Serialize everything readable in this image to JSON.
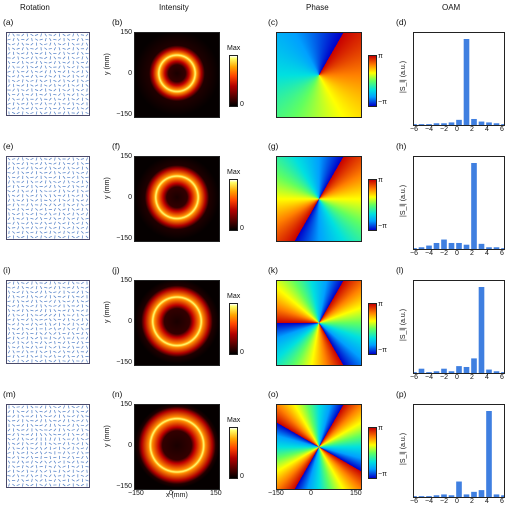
{
  "columns": {
    "rotation": "Rotation",
    "intensity": "Intensity",
    "phase": "Phase",
    "oam": "OAM"
  },
  "panel_letters": [
    [
      "(a)",
      "(b)",
      "(c)",
      "(d)"
    ],
    [
      "(e)",
      "(f)",
      "(g)",
      "(h)"
    ],
    [
      "(i)",
      "(j)",
      "(k)",
      "(l)"
    ],
    [
      "(m)",
      "(n)",
      "(o)",
      "(p)"
    ]
  ],
  "colorbar_intensity": {
    "max": "Max",
    "min": "0"
  },
  "colorbar_phase": {
    "max": "π",
    "min": "−π"
  },
  "axes": {
    "ylabel": "y (mm)",
    "xlabel": "x (mm)",
    "yticks": [
      "150",
      "0",
      "−150"
    ],
    "xticks": [
      "−150",
      "0",
      "150"
    ],
    "oam_ylabel": "|S_l| (a.u.)",
    "oam_xticks": [
      "−6",
      "−4",
      "−2",
      "0",
      "2",
      "4",
      "6"
    ]
  },
  "chart_data": [
    {
      "type": "bar",
      "panel": "(d)",
      "title": "OAM",
      "xlabel": "",
      "ylabel": "|S_l| (a.u.)",
      "xlim": [
        -6,
        6
      ],
      "categories": [
        -6,
        -5,
        -4,
        -3,
        -2,
        -1,
        0,
        1,
        2,
        3,
        4,
        5,
        6
      ],
      "values": [
        0.01,
        0.01,
        0.01,
        0.02,
        0.02,
        0.03,
        0.06,
        1.0,
        0.07,
        0.04,
        0.03,
        0.02,
        0.01
      ]
    },
    {
      "type": "bar",
      "panel": "(h)",
      "xlabel": "",
      "ylabel": "|S_l| (a.u.)",
      "xlim": [
        -6,
        6
      ],
      "categories": [
        -6,
        -5,
        -4,
        -3,
        -2,
        -1,
        0,
        1,
        2,
        3,
        4,
        5,
        6
      ],
      "values": [
        0.01,
        0.02,
        0.04,
        0.07,
        0.11,
        0.07,
        0.07,
        0.05,
        1.0,
        0.06,
        0.02,
        0.02,
        0.01
      ]
    },
    {
      "type": "bar",
      "panel": "(l)",
      "xlabel": "",
      "ylabel": "|S_l| (a.u.)",
      "xlim": [
        -6,
        6
      ],
      "categories": [
        -6,
        -5,
        -4,
        -3,
        -2,
        -1,
        0,
        1,
        2,
        3,
        4,
        5,
        6
      ],
      "values": [
        0.01,
        0.05,
        0.01,
        0.02,
        0.05,
        0.02,
        0.08,
        0.07,
        0.17,
        1.0,
        0.04,
        0.02,
        0.01
      ]
    },
    {
      "type": "bar",
      "panel": "(p)",
      "xlabel": "",
      "ylabel": "|S_l| (a.u.)",
      "xlim": [
        -6,
        6
      ],
      "categories": [
        -6,
        -5,
        -4,
        -3,
        -2,
        -1,
        0,
        1,
        2,
        3,
        4,
        5,
        6
      ],
      "values": [
        0.01,
        0.01,
        0.01,
        0.02,
        0.03,
        0.02,
        0.18,
        0.03,
        0.06,
        0.08,
        1.0,
        0.03,
        0.02
      ]
    }
  ]
}
